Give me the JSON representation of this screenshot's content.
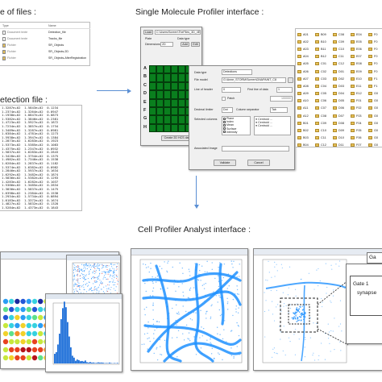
{
  "titles": {
    "list_of_files": "e of files :",
    "smp_interface": "Single Molecule Profiler interface :",
    "detection_file": "etection file :",
    "cpa_interface": "Cell Profiler Analyst interface :"
  },
  "file_list": {
    "columns": [
      "Type",
      "Name"
    ],
    "rows": [
      {
        "type": "Document texte",
        "name": "Detection_file"
      },
      {
        "type": "Document texte",
        "name": "Tracks_file"
      },
      {
        "type": "Fichier",
        "name": "SR_Objects"
      },
      {
        "type": "Fichier",
        "name": "SR_Objects-2D"
      },
      {
        "type": "Fichier",
        "name": "SR_Objects-AfterRegistration"
      }
    ]
  },
  "detection_rows": [
    "1.3287e+02  1.5843e+02  0.1234",
    "1.2374e+02  1.3264e+02  0.0947",
    "1.1938e+02  1.0847e+02  0.0873",
    "1.5382e+02  1.3846e+02  0.2381",
    "1.4723e+02  1.5927e+02  0.1872",
    "1.7234e+02  1.3857e+02  0.1734",
    "1.3489e+02  1.3287e+02  0.0981",
    "1.6384e+02  1.4781e+02  0.1273",
    "1.5938e+02  1.3947e+02  0.1384",
    "1.2873e+02  1.6283e+02  0.1923",
    "1.5373e+02  1.5385e+02  0.1083",
    "1.4375e+02  1.2347e+02  0.0932",
    "1.5837e+02  1.6283e+02  0.2843",
    "1.3428e+02  1.3754e+02  0.1375",
    "1.4982e+02  1.7346e+02  0.1538",
    "1.6284e+02  1.2837e+02  0.1182",
    "1.5374e+02  1.6382e+02  0.0982",
    "1.2846e+02  1.5937e+02  0.1634",
    "1.6292e+02  1.3482e+02  0.1874",
    "1.5836e+02  1.5382e+02  0.1293",
    "1.4283e+02  1.6282e+02  0.1037",
    "1.5386e+02  1.3485e+02  0.2834",
    "1.3836e+02  1.5837e+02  0.1475",
    "1.6398e+02  1.2384e+02  0.1538",
    "1.2934e+02  1.5734e+02  0.0894",
    "1.6183e+02  1.3372e+02  0.1674",
    "1.4827e+02  1.5832e+02  0.1328",
    "1.5284e+02  1.4373e+02  0.1843"
  ],
  "smp_main": {
    "load_button": "Load",
    "path": "C:\\Users\\Screen\\TheFiles_3D_4EK76",
    "plate_label": "Plate",
    "data_type_label": "Data type",
    "dimensions_label": "Dimensions",
    "dimensions_value": "2D",
    "add_button": "Add",
    "edit_button": "Edit",
    "row_labels": [
      "A",
      "B",
      "C",
      "D",
      "E",
      "F",
      "G",
      "H"
    ],
    "create_button": "Create 2D HCS database"
  },
  "smp_dialog": {
    "data_type_label": "Data type",
    "data_type_value": "Detections",
    "file_model_label": "File model",
    "file_model_value": "G:\\Anne_STORM\\Screen\\DNAPAINT_C8",
    "line_of_header_label": "Line of header",
    "line_of_header_value": "0",
    "first_line_label": "First line of data",
    "first_line_value": "1",
    "patch_label": "Patch",
    "patch_value": "100000",
    "decimal_label": "Decimal limiter",
    "decimal_value": "Dot",
    "column_sep_label": "Column separator",
    "column_sep_value": "Tab",
    "selected_columns_label": "Selected columns",
    "columns": [
      "Plane",
      "Index",
      "Mean",
      "Surface",
      "Intensity"
    ],
    "associated_image_label": "Associated Image",
    "validate_button": "Validate",
    "cancel_button": "Cancel"
  },
  "plate_list": {
    "col1": [
      "A01",
      "A02",
      "A03",
      "A04",
      "A05",
      "A06",
      "A07",
      "A08",
      "A09",
      "A10",
      "A11",
      "A12",
      "B01",
      "B02",
      "B03",
      "B04",
      "B05",
      "B06",
      "B07",
      "B08",
      "B09",
      "B10",
      "B11",
      "B12",
      "C01",
      "C02",
      "C03",
      "C04",
      "C05",
      "C06",
      "C07",
      "C08",
      "C09",
      "C10",
      "C11",
      "C12",
      "D01",
      "D02",
      "D03"
    ],
    "col2": [
      "B09",
      "B10",
      "B11",
      "B12",
      "C01",
      "C02",
      "C03",
      "C04",
      "C05",
      "C06",
      "C07",
      "C08",
      "C09",
      "C10",
      "C11",
      "C12",
      "D01",
      "D02",
      "D03",
      "D04",
      "D05",
      "D06",
      "D07",
      "D08",
      "D09",
      "D10",
      "D11",
      "D12",
      "E01",
      "E02",
      "E03",
      "E04",
      "E05",
      "E06",
      "E07",
      "E08",
      "E09",
      "E10",
      "E11"
    ],
    "col3": [
      "C08",
      "C09",
      "C10",
      "C11",
      "C12",
      "D01",
      "D02",
      "D03",
      "D04",
      "D05",
      "D06",
      "D07",
      "D08",
      "D09",
      "D10",
      "D11",
      "D12",
      "E01",
      "E02",
      "E03",
      "E04",
      "E05",
      "E06",
      "E07",
      "E08",
      "E09",
      "E10",
      "E11",
      "E12",
      "F01",
      "F02",
      "F03",
      "F04",
      "F05",
      "F06",
      "F07",
      "F08",
      "F09",
      "F10"
    ],
    "col4": [
      "E04",
      "E05",
      "E06",
      "E07",
      "E08",
      "E09",
      "E10",
      "E11",
      "E12",
      "F01",
      "F02",
      "F03",
      "F04",
      "F05",
      "F06",
      "F07",
      "F08",
      "F09",
      "F10",
      "F11",
      "F12",
      "G01",
      "G02",
      "G03",
      "G04",
      "G05",
      "G06",
      "G07",
      "G08",
      "G09",
      "G10",
      "G11",
      "G12",
      "H01",
      "H02",
      "H03",
      "H04",
      "H05",
      "H06"
    ],
    "col5": [
      "F0",
      "F0",
      "F0",
      "F0",
      "F0",
      "F0",
      "F1",
      "F1",
      "G0",
      "G0",
      "G0",
      "G0",
      "G0",
      "G0",
      "G0",
      "G0",
      "G1",
      "G1",
      "H0",
      "H0",
      "H0",
      "H0",
      "H0",
      "H0",
      "H0",
      "H0",
      "H1",
      "H1",
      "H1",
      "H1",
      "H1",
      "H1",
      "H1",
      "H1",
      "H1",
      "H1",
      "H1",
      "H1",
      "H1"
    ]
  },
  "gate": {
    "gate_label": "Gate 1",
    "synapse_label": "synapse",
    "partial_label": "Ga"
  },
  "colors": {
    "grid_green": "#0a7f1e",
    "arrow_blue": "#5b8fd4",
    "scatter_blue": "#1e90ff",
    "folder_yellow": "#e8c25a"
  }
}
